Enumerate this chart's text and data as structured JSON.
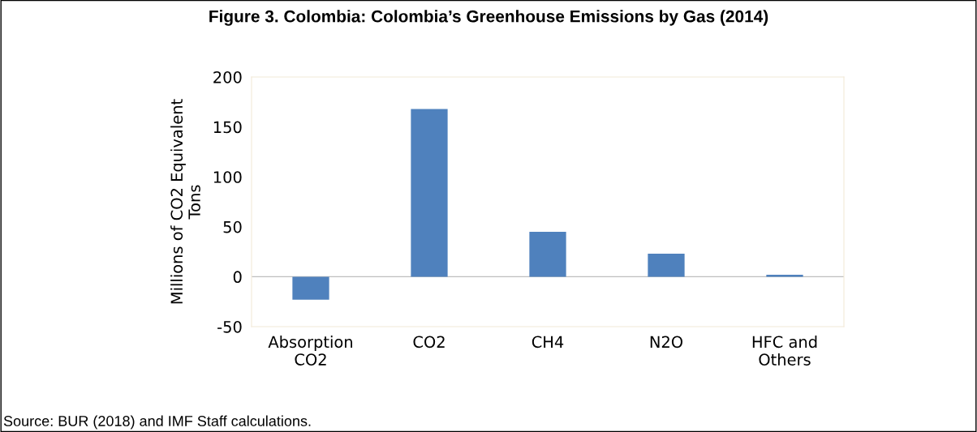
{
  "chart_data": {
    "type": "bar",
    "title": "Figure 3. Colombia: Colombia’s Greenhouse Emissions by Gas (2014)",
    "ylabel": "Millions of CO2 Equivalent\nTons",
    "categories": [
      "Absorption\nCO2",
      "CO2",
      "CH4",
      "N2O",
      "HFC and\nOthers"
    ],
    "values": [
      -23,
      168,
      45,
      23,
      2
    ],
    "color": "#4f81bd",
    "ylim": [
      -50,
      200
    ],
    "yticks": [
      -50,
      0,
      50,
      100,
      150,
      200
    ],
    "annotations": [
      "Source: BUR (2018) and IMF Staff calculations."
    ]
  }
}
